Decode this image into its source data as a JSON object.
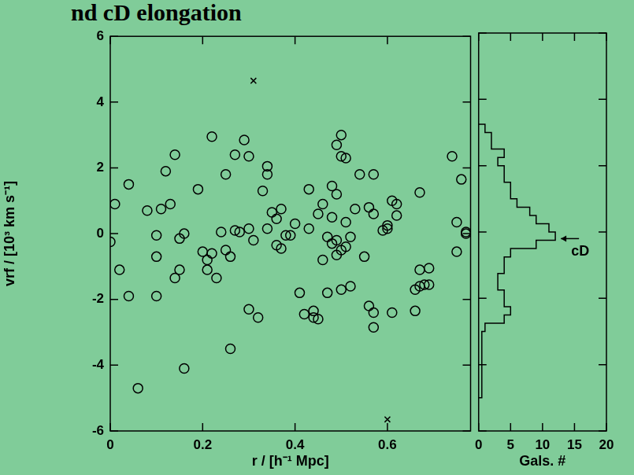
{
  "chart_data": [
    {
      "type": "scatter",
      "title": "nd cD elongation",
      "x_label": "r / [h⁻¹ Mpc]",
      "y_label": "vrf / [10³ km s⁻¹]",
      "xlim": [
        0,
        0.78
      ],
      "xticks": [
        0,
        0.2,
        0.4,
        0.6
      ],
      "ylim": [
        -6,
        6
      ],
      "yticks": [
        -6,
        -4,
        -2,
        0,
        2,
        4,
        6
      ],
      "grid": false,
      "series": [
        {
          "marker": "circle",
          "color": "#000000",
          "x": [
            0,
            0.01,
            0.02,
            0.04,
            0.04,
            0.06,
            0.08,
            0.1,
            0.1,
            0.1,
            0.11,
            0.12,
            0.13,
            0.14,
            0.14,
            0.15,
            0.15,
            0.16,
            0.16,
            0.19,
            0.2,
            0.21,
            0.21,
            0.22,
            0.22,
            0.23,
            0.24,
            0.25,
            0.25,
            0.26,
            0.26,
            0.27,
            0.27,
            0.28,
            0.29,
            0.3,
            0.3,
            0.3,
            0.31,
            0.32,
            0.33,
            0.34,
            0.34,
            0.34,
            0.35,
            0.36,
            0.36,
            0.37,
            0.37,
            0.38,
            0.39,
            0.4,
            0.41,
            0.42,
            0.43,
            0.43,
            0.44,
            0.44,
            0.45,
            0.45,
            0.46,
            0.46,
            0.47,
            0.47,
            0.48,
            0.48,
            0.48,
            0.49,
            0.49,
            0.49,
            0.5,
            0.5,
            0.51,
            0.5,
            0.49,
            0.5,
            0.51,
            0.51,
            0.52,
            0.52,
            0.53,
            0.54,
            0.55,
            0.56,
            0.56,
            0.57,
            0.57,
            0.57,
            0.57,
            0.59,
            0.6,
            0.6,
            0.61,
            0.61,
            0.62,
            0.62,
            0.66,
            0.66,
            0.67,
            0.67,
            0.67,
            0.68,
            0.69,
            0.69,
            0.74,
            0.75,
            0.75,
            0.76,
            0.77,
            0.77
          ],
          "values": [
            -0.25,
            0.9,
            -1.1,
            1.5,
            -1.9,
            -4.7,
            0.7,
            -0.05,
            -0.7,
            -1.9,
            0.75,
            1.9,
            0.9,
            2.4,
            -1.35,
            -1.1,
            -0.15,
            0,
            -4.1,
            1.35,
            -0.55,
            -0.8,
            -1.1,
            2.95,
            -0.6,
            -1.35,
            0.05,
            -0.5,
            1.8,
            -0.7,
            -3.5,
            2.4,
            0.1,
            0.05,
            2.85,
            2.35,
            0.15,
            -2.3,
            -0.2,
            -2.55,
            1.3,
            0.15,
            2.05,
            1.8,
            0.65,
            -0.35,
            0.45,
            0.75,
            -0.45,
            -0.05,
            -0.05,
            0.3,
            -1.8,
            -2.45,
            1.35,
            0.15,
            -2.35,
            -2.55,
            -2.6,
            0.6,
            0.9,
            -0.8,
            -0.1,
            -1.8,
            1.45,
            0.5,
            -0.3,
            2.7,
            -0.2,
            1.2,
            3.0,
            2.35,
            2.3,
            -0.5,
            -0.65,
            -1.7,
            0.35,
            -0.4,
            -0.1,
            -1.6,
            0.75,
            1.8,
            -0.7,
            0.8,
            -2.2,
            0.6,
            1.8,
            -2.4,
            -2.85,
            0.1,
            0.15,
            0.25,
            1.0,
            -2.4,
            0.55,
            0.9,
            -1.7,
            -2.35,
            1.25,
            -1.1,
            -1.6,
            -1.55,
            -1.05,
            -1.55,
            2.35,
            0.35,
            -0.55,
            1.65,
            0,
            0.05
          ]
        },
        {
          "marker": "x",
          "color": "#000000",
          "x": [
            0.31,
            0.6
          ],
          "values": [
            4.65,
            -5.65
          ]
        }
      ]
    },
    {
      "type": "histogram",
      "orientation": "horizontal",
      "x_label": "Gals. #",
      "xlim": [
        0,
        20
      ],
      "xticks": [
        0,
        5,
        10,
        15,
        20
      ],
      "ylim": [
        -6,
        6
      ],
      "yticks": [
        -6,
        -4,
        -2,
        0,
        2,
        4,
        6
      ],
      "tick_labels": "x",
      "grid": false,
      "color": "#000000",
      "line_style": "solid",
      "bins": [
        -5,
        -4.75,
        -4.5,
        -4.25,
        -4,
        -3.75,
        -3.5,
        -3.25,
        -3,
        -2.75,
        -2.5,
        -2.25,
        -2,
        -1.75,
        -1.5,
        -1.25,
        -1,
        -0.75,
        -0.5,
        -0.25,
        0,
        0.25,
        0.5,
        0.75,
        1,
        1.25,
        1.5,
        1.75,
        2,
        2.25,
        2.5,
        2.75,
        3,
        3.25
      ],
      "values": [
        0.5,
        0.5,
        0.5,
        0.5,
        0.5,
        0.5,
        0.5,
        0.5,
        1,
        4,
        5,
        4,
        4,
        3,
        3,
        4,
        4,
        5,
        9,
        12,
        11,
        9,
        8,
        6,
        5,
        5,
        4,
        4,
        3,
        4,
        2,
        2,
        1
      ],
      "annotations": [
        {
          "text": "cD",
          "x": 12.5,
          "y": -0.2
        }
      ]
    }
  ]
}
